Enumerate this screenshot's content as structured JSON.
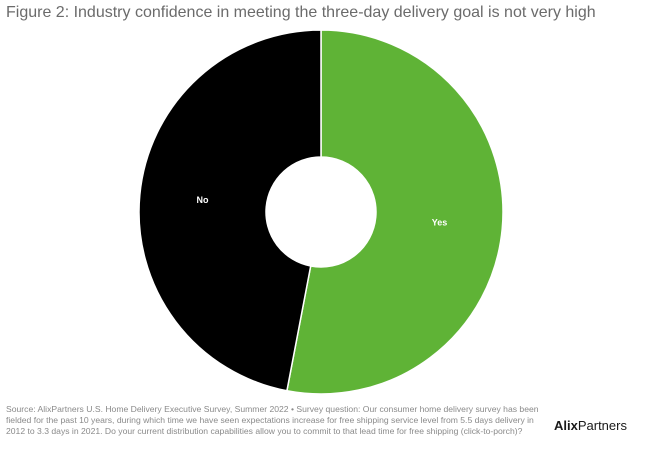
{
  "chart_data": {
    "type": "donut",
    "title": "Figure 2: Industry confidence in meeting the three-day delivery goal is not very high",
    "categories": [
      "Yes",
      "No"
    ],
    "values": [
      53,
      47
    ],
    "colors": [
      "#5fb336",
      "#000000"
    ],
    "source": "Source: AlixPartners U.S. Home Delivery Executive Survey, Summer 2022 • Survey question: Our consumer home delivery survey has been fielded for the past 10 years, during which time we have seen expectations increase for free shipping service level from 5.5 days delivery in 2012 to 3.3 days in 2021. Do your current distribution capabilities allow you to commit to that lead time for free shipping (click-to-porch)?",
    "logo": {
      "bold": "Alix",
      "regular": "Partners"
    }
  }
}
